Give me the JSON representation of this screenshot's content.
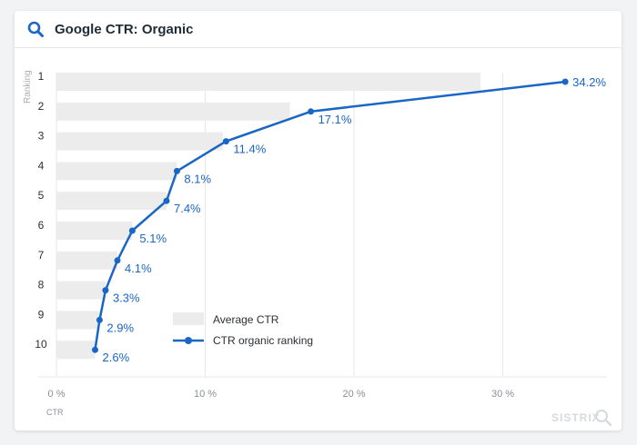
{
  "header": {
    "title": "Google CTR: Organic",
    "icon": "search-icon"
  },
  "watermark": "SISTRIX",
  "legend": {
    "bar_label": "Average CTR",
    "line_label": "CTR organic ranking"
  },
  "colors": {
    "accent": "#1a66c4",
    "bar": "#ececec"
  },
  "chart_data": {
    "type": "bar",
    "orientation": "horizontal",
    "title": "Google CTR: Organic",
    "xlabel": "CTR",
    "ylabel": "Ranking",
    "categories": [
      "1",
      "2",
      "3",
      "4",
      "5",
      "6",
      "7",
      "8",
      "9",
      "10"
    ],
    "xlim": [
      0,
      35
    ],
    "xticks": [
      0,
      10,
      20,
      30
    ],
    "xtick_labels": [
      "0 %",
      "10 %",
      "20 %",
      "30 %"
    ],
    "grid": true,
    "legend_position": "bottom-center",
    "series": [
      {
        "name": "Average CTR",
        "type": "bar",
        "values": [
          28.5,
          15.7,
          11.2,
          8.1,
          7.4,
          5.1,
          4.1,
          3.3,
          2.9,
          2.6
        ]
      },
      {
        "name": "CTR organic ranking",
        "type": "line",
        "values": [
          34.2,
          17.1,
          11.4,
          8.1,
          7.4,
          5.1,
          4.1,
          3.3,
          2.9,
          2.6
        ],
        "labels": [
          "34.2%",
          "17.1%",
          "11.4%",
          "8.1%",
          "7.4%",
          "5.1%",
          "4.1%",
          "3.3%",
          "2.9%",
          "2.6%"
        ]
      }
    ]
  }
}
